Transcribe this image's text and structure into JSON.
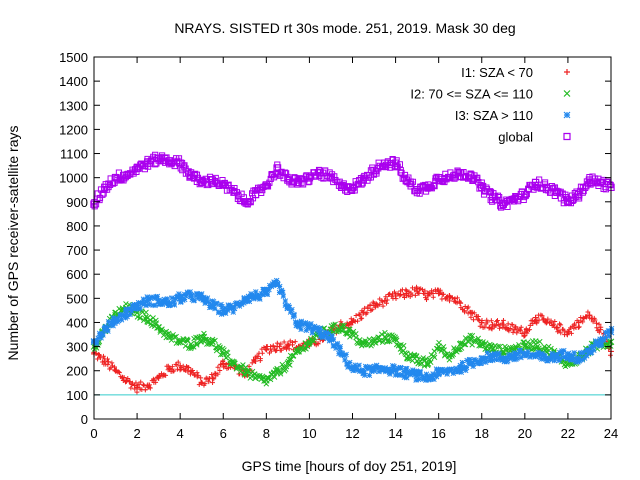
{
  "chart_data": {
    "type": "scatter",
    "title": "NRAYS. SISTED rt 30s mode. 251, 2019. Mask 30 deg",
    "xlabel": "GPS time [hours of doy 251, 2019]",
    "ylabel": "Number of GPS receiver-satellite rays",
    "xlim": [
      0,
      24
    ],
    "ylim": [
      0,
      1500
    ],
    "x_ticks": [
      "0",
      "2",
      "4",
      "6",
      "8",
      "10",
      "12",
      "14",
      "16",
      "18",
      "20",
      "22",
      "24"
    ],
    "y_ticks": [
      "0",
      "100",
      "200",
      "300",
      "400",
      "500",
      "600",
      "700",
      "800",
      "900",
      "1000",
      "1100",
      "1200",
      "1300",
      "1400",
      "1500"
    ],
    "grid": false,
    "legend_position": "top-right",
    "threshold_line": {
      "y": 100,
      "color": "#33cccc"
    },
    "series": [
      {
        "name": "I1: SZA < 70",
        "marker": "plus",
        "color": "#ee2222",
        "x": [
          0,
          0.5,
          1,
          1.5,
          2,
          2.5,
          3,
          3.5,
          4,
          4.5,
          5,
          5.5,
          6,
          6.5,
          7,
          7.5,
          8,
          8.5,
          9,
          9.5,
          10,
          10.5,
          11,
          11.5,
          12,
          12.5,
          13,
          13.5,
          14,
          14.5,
          15,
          15.5,
          16,
          16.5,
          17,
          17.5,
          18,
          18.5,
          19,
          19.5,
          20,
          20.5,
          21,
          21.5,
          22,
          22.5,
          23,
          23.5,
          24
        ],
        "values": [
          270,
          240,
          200,
          160,
          130,
          140,
          170,
          210,
          220,
          200,
          150,
          170,
          230,
          220,
          180,
          240,
          290,
          300,
          310,
          300,
          310,
          330,
          360,
          390,
          400,
          440,
          470,
          490,
          510,
          520,
          530,
          510,
          520,
          510,
          480,
          440,
          400,
          390,
          390,
          370,
          360,
          420,
          400,
          380,
          360,
          400,
          430,
          370,
          280
        ]
      },
      {
        "name": "I2: 70 <= SZA <= 110",
        "marker": "cross",
        "color": "#22bb22",
        "x": [
          0,
          0.5,
          1,
          1.5,
          2,
          2.5,
          3,
          3.5,
          4,
          4.5,
          5,
          5.5,
          6,
          6.5,
          7,
          7.5,
          8,
          8.5,
          9,
          9.5,
          10,
          10.5,
          11,
          11.5,
          12,
          12.5,
          13,
          13.5,
          14,
          14.5,
          15,
          15.5,
          16,
          16.5,
          17,
          17.5,
          18,
          18.5,
          19,
          19.5,
          20,
          20.5,
          21,
          21.5,
          22,
          22.5,
          23,
          23.5,
          24
        ],
        "values": [
          300,
          370,
          430,
          460,
          440,
          420,
          380,
          340,
          320,
          310,
          340,
          320,
          270,
          230,
          200,
          170,
          160,
          190,
          230,
          280,
          320,
          350,
          370,
          380,
          350,
          310,
          320,
          340,
          330,
          270,
          240,
          230,
          300,
          260,
          310,
          330,
          310,
          290,
          280,
          290,
          300,
          310,
          290,
          260,
          230,
          250,
          290,
          310,
          320
        ]
      },
      {
        "name": "I3: SZA > 110",
        "marker": "star",
        "color": "#2288ee",
        "x": [
          0,
          0.5,
          1,
          1.5,
          2,
          2.5,
          3,
          3.5,
          4,
          4.5,
          5,
          5.5,
          6,
          6.5,
          7,
          7.5,
          8,
          8.5,
          9,
          9.5,
          10,
          10.5,
          11,
          11.5,
          12,
          12.5,
          13,
          13.5,
          14,
          14.5,
          15,
          15.5,
          16,
          16.5,
          17,
          17.5,
          18,
          18.5,
          19,
          19.5,
          20,
          20.5,
          21,
          21.5,
          22,
          22.5,
          23,
          23.5,
          24
        ],
        "values": [
          320,
          370,
          410,
          440,
          470,
          490,
          490,
          480,
          500,
          510,
          500,
          470,
          450,
          460,
          500,
          510,
          520,
          560,
          460,
          390,
          380,
          360,
          330,
          270,
          210,
          200,
          200,
          210,
          200,
          190,
          180,
          170,
          190,
          200,
          210,
          230,
          250,
          260,
          250,
          260,
          270,
          260,
          250,
          260,
          270,
          250,
          280,
          320,
          360
        ]
      },
      {
        "name": "global",
        "marker": "square",
        "color": "#aa00ee",
        "x": [
          0,
          0.5,
          1,
          1.5,
          2,
          2.5,
          3,
          3.5,
          4,
          4.5,
          5,
          5.5,
          6,
          6.5,
          7,
          7.5,
          8,
          8.5,
          9,
          9.5,
          10,
          10.5,
          11,
          11.5,
          12,
          12.5,
          13,
          13.5,
          14,
          14.5,
          15,
          15.5,
          16,
          16.5,
          17,
          17.5,
          18,
          18.5,
          19,
          19.5,
          20,
          20.5,
          21,
          21.5,
          22,
          22.5,
          23,
          23.5,
          24
        ],
        "values": [
          890,
          960,
          1000,
          1010,
          1040,
          1060,
          1080,
          1070,
          1060,
          1010,
          980,
          990,
          970,
          940,
          900,
          930,
          970,
          1040,
          990,
          980,
          1000,
          1020,
          1000,
          960,
          960,
          990,
          1030,
          1060,
          1060,
          990,
          950,
          960,
          1000,
          1000,
          1020,
          1010,
          960,
          920,
          890,
          910,
          930,
          980,
          960,
          940,
          900,
          930,
          990,
          980,
          960
        ]
      }
    ]
  }
}
